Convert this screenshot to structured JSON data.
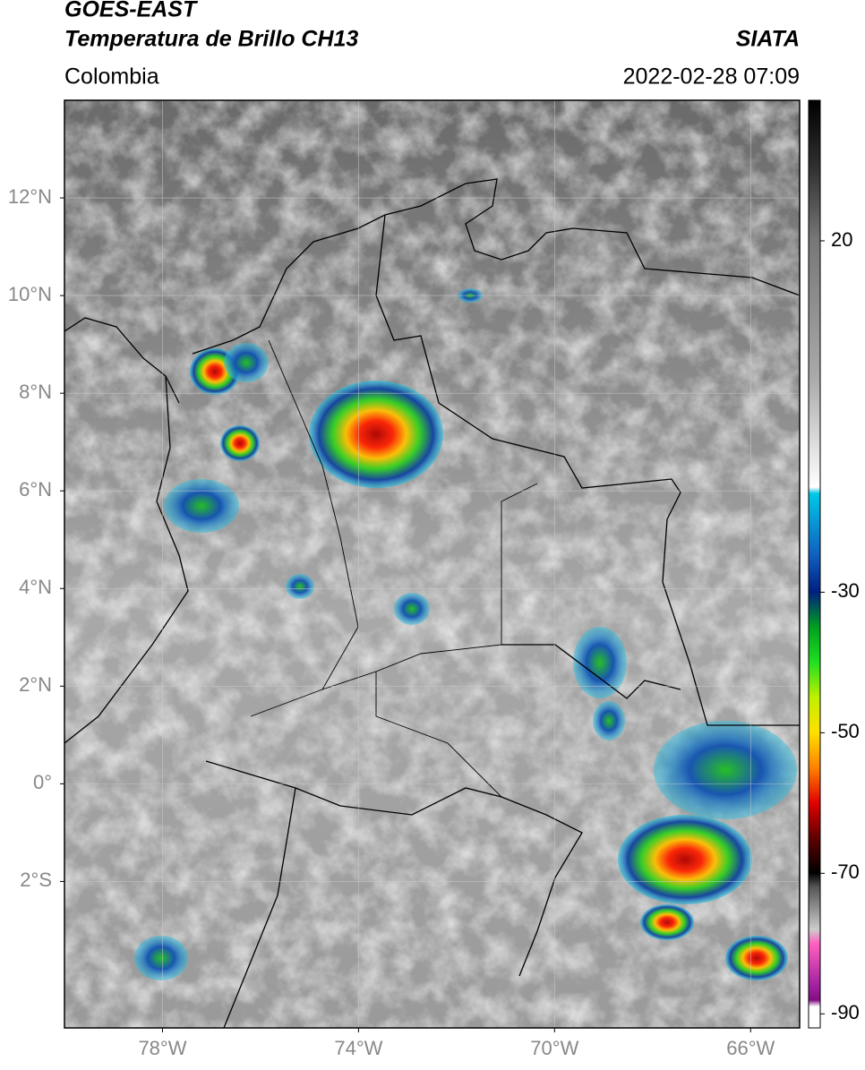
{
  "header": {
    "title": "GOES-EAST",
    "subtitle": "Temperatura de Brillo CH13",
    "region": "Colombia",
    "source": "SIATA",
    "datetime": "2022-02-28 07:09"
  },
  "map": {
    "xlim": [
      -80,
      -65
    ],
    "ylim": [
      -5,
      14
    ],
    "xticks": [
      {
        "value": -78,
        "label": "78°W"
      },
      {
        "value": -74,
        "label": "74°W"
      },
      {
        "value": -70,
        "label": "70°W"
      },
      {
        "value": -66,
        "label": "66°W"
      }
    ],
    "yticks": [
      {
        "value": 12,
        "label": "12°N"
      },
      {
        "value": 10,
        "label": "10°N"
      },
      {
        "value": 8,
        "label": "8°N"
      },
      {
        "value": 6,
        "label": "6°N"
      },
      {
        "value": 4,
        "label": "4°N"
      },
      {
        "value": 2,
        "label": "2°N"
      },
      {
        "value": 0,
        "label": "0°"
      },
      {
        "value": -2,
        "label": "2°S"
      }
    ],
    "grid": true
  },
  "colorbar": {
    "lim": [
      -92,
      40
    ],
    "ticks": [
      20,
      -30,
      -50,
      -70,
      -90
    ]
  }
}
